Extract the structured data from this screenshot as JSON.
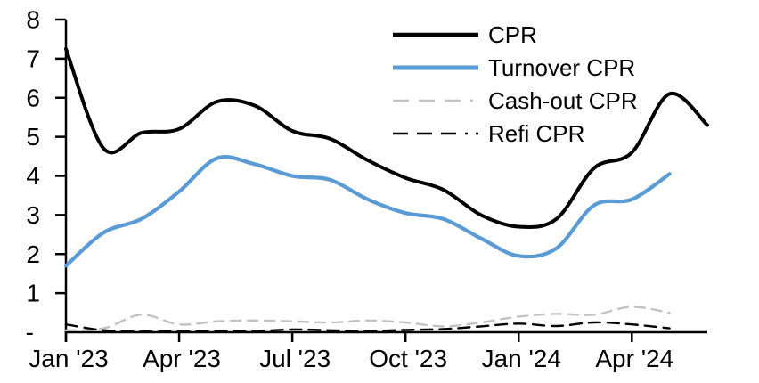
{
  "chart_data": {
    "type": "line",
    "title": "",
    "xlabel": "",
    "ylabel": "",
    "ylim": [
      0,
      8
    ],
    "grid": false,
    "legend_position": "top-right-inside",
    "categories": [
      "Jan '23",
      "Feb '23",
      "Mar '23",
      "Apr '23",
      "May '23",
      "Jun '23",
      "Jul '23",
      "Aug '23",
      "Sep '23",
      "Oct '23",
      "Nov '23",
      "Dec '23",
      "Jan '24",
      "Feb '24",
      "Mar '24",
      "Apr '24",
      "May '24",
      "Jun '24"
    ],
    "x_tick_labels": [
      "Jan '23",
      "Apr '23",
      "Jul '23",
      "Oct '23",
      "Jan '24",
      "Apr '24"
    ],
    "x_tick_category_indexes": [
      0,
      3,
      6,
      9,
      12,
      15
    ],
    "y_tick_labels": [
      "8",
      "7",
      "6",
      "5",
      "4",
      "3",
      "2",
      "1",
      "-"
    ],
    "y_tick_values": [
      8,
      7,
      6,
      5,
      4,
      3,
      2,
      1,
      0
    ],
    "zero_label": "-",
    "series": [
      {
        "name": "CPR",
        "color": "#000000",
        "style": "solid",
        "values": [
          7.25,
          4.7,
          5.1,
          5.2,
          5.9,
          5.8,
          5.15,
          4.95,
          4.4,
          3.95,
          3.65,
          3.0,
          2.7,
          2.9,
          4.2,
          4.6,
          6.1,
          5.3
        ]
      },
      {
        "name": "Turnover CPR",
        "color": "#5B9BD5",
        "style": "solid",
        "values": [
          1.7,
          2.55,
          2.9,
          3.6,
          4.45,
          4.3,
          4.0,
          3.9,
          3.4,
          3.05,
          2.9,
          2.4,
          1.95,
          2.15,
          3.25,
          3.4,
          4.05,
          null
        ]
      },
      {
        "name": "Cash-out CPR",
        "color": "#C2C2C2",
        "style": "dashed",
        "values": [
          0.05,
          0.1,
          0.45,
          0.2,
          0.28,
          0.3,
          0.28,
          0.25,
          0.3,
          0.25,
          0.15,
          0.25,
          0.4,
          0.47,
          0.45,
          0.65,
          0.5,
          null
        ]
      },
      {
        "name": "Refi CPR",
        "color": "#000000",
        "style": "dashed",
        "values": [
          0.2,
          0.05,
          0.02,
          0.02,
          0.03,
          0.03,
          0.07,
          0.05,
          0.03,
          0.06,
          0.08,
          0.15,
          0.22,
          0.16,
          0.25,
          0.2,
          0.1,
          null
        ]
      }
    ]
  }
}
